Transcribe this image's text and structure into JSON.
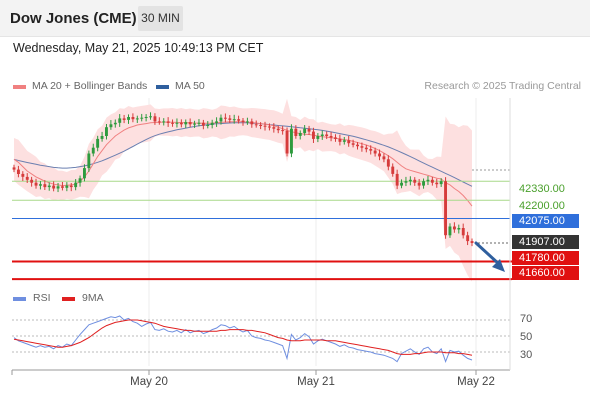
{
  "header": {
    "title": "Dow Jones (CME)",
    "timeframe": "30 MIN"
  },
  "timestamp": "Wednesday, May 21, 2025 10:49:13 PM CET",
  "legend": {
    "bollinger": "MA 20 + Bollinger Bands",
    "ma50": "MA 50",
    "rsi": "RSI",
    "rsi_ma": "9MA"
  },
  "copyright": "Research © 2025 Trading Central",
  "colors": {
    "up": "#2e9b3e",
    "down": "#d63b3b",
    "bollinger": "#f08080",
    "band_fill": "#fde0e0",
    "ma50": "#6b7fb0",
    "support_line": "#e01010",
    "support_label": "#e01010",
    "resistance_line": "#a8d98a",
    "resistance_text": "#4aa02c",
    "pivot": "#2f6fdb",
    "last_price": "#333333",
    "rsi": "#6f8fe0",
    "rsi_ma": "#e02020",
    "arrow": "#2f5f9e"
  },
  "levels": {
    "resistance": [
      "42330.00",
      "42200.00"
    ],
    "pivot": "42075.00",
    "last": "41907.00",
    "support": [
      "41780.00",
      "41660.00"
    ]
  },
  "x_labels": [
    "May 20",
    "May 21",
    "May 22"
  ],
  "rsi_ticks": [
    "70",
    "50",
    "30"
  ],
  "chart_data": [
    {
      "type": "candlestick",
      "title": "Dow Jones (CME)",
      "timeframe": "30 MIN",
      "ylim": [
        41640,
        42900
      ],
      "x_labels": [
        "May 20",
        "May 21",
        "May 22"
      ],
      "closes": [
        42410,
        42380,
        42360,
        42340,
        42320,
        42300,
        42310,
        42290,
        42300,
        42280,
        42295,
        42285,
        42300,
        42290,
        42320,
        42350,
        42420,
        42520,
        42560,
        42620,
        42640,
        42700,
        42720,
        42730,
        42760,
        42750,
        42770,
        42755,
        42760,
        42765,
        42770,
        42775,
        42740,
        42735,
        42740,
        42730,
        42725,
        42730,
        42720,
        42735,
        42720,
        42725,
        42730,
        42710,
        42715,
        42730,
        42740,
        42765,
        42760,
        42750,
        42755,
        42745,
        42735,
        42740,
        42720,
        42715,
        42710,
        42705,
        42700,
        42690,
        42680,
        42675,
        42520,
        42690,
        42640,
        42660,
        42690,
        42670,
        42620,
        42640,
        42650,
        42640,
        42630,
        42620,
        42600,
        42610,
        42590,
        42580,
        42570,
        42560,
        42550,
        42540,
        42520,
        42500,
        42480,
        42430,
        42380,
        42300,
        42320,
        42330,
        42340,
        42320,
        42300,
        42330,
        42340,
        42320,
        42310,
        42330,
        41960,
        42020,
        42000,
        42010,
        41960,
        41920,
        41907
      ],
      "ma20": [
        42480,
        42460,
        42430,
        42400,
        42380,
        42360,
        42345,
        42330,
        42320,
        42310,
        42305,
        42300,
        42302,
        42305,
        42310,
        42330,
        42360,
        42400,
        42450,
        42500,
        42540,
        42580,
        42610,
        42640,
        42660,
        42680,
        42695,
        42705,
        42715,
        42720,
        42725,
        42730,
        42732,
        42734,
        42735,
        42735,
        42734,
        42733,
        42732,
        42731,
        42730,
        42729,
        42728,
        42727,
        42727,
        42728,
        42730,
        42733,
        42735,
        42737,
        42738,
        42738,
        42737,
        42735,
        42732,
        42729,
        42725,
        42721,
        42716,
        42710,
        42700,
        42690,
        42678,
        42670,
        42662,
        42656,
        42652,
        42650,
        42645,
        42640,
        42635,
        42632,
        42628,
        42624,
        42620,
        42615,
        42610,
        42603,
        42595,
        42587,
        42578,
        42567,
        42555,
        42540,
        42523,
        42505,
        42484,
        42460,
        42435,
        42415,
        42405,
        42396,
        42387,
        42378,
        42370,
        42360,
        42351,
        42345,
        42320,
        42305,
        42280,
        42260,
        42232,
        42198,
        42160
      ],
      "ma50": [
        42480,
        42472,
        42465,
        42458,
        42452,
        42446,
        42440,
        42435,
        42430,
        42425,
        42422,
        42420,
        42420,
        42422,
        42425,
        42430,
        42435,
        42442,
        42450,
        42460,
        42470,
        42482,
        42495,
        42508,
        42522,
        42536,
        42552,
        42568,
        42584,
        42600,
        42615,
        42630,
        42642,
        42652,
        42660,
        42668,
        42675,
        42682,
        42688,
        42694,
        42700,
        42705,
        42710,
        42714,
        42718,
        42721,
        42723,
        42725,
        42727,
        42729,
        42730,
        42730,
        42730,
        42730,
        42728,
        42726,
        42724,
        42721,
        42718,
        42715,
        42712,
        42709,
        42706,
        42703,
        42700,
        42696,
        42693,
        42690,
        42686,
        42682,
        42678,
        42673,
        42668,
        42662,
        42656,
        42650,
        42644,
        42638,
        42630,
        42622,
        42614,
        42605,
        42596,
        42586,
        42576,
        42565,
        42553,
        42540,
        42527,
        42513,
        42499,
        42484,
        42469,
        42454,
        42440,
        42426,
        42412,
        42398,
        42384,
        42370,
        42355,
        42340,
        42325,
        42310,
        42295
      ],
      "levels": {
        "resistance": [
          42330.0,
          42200.0
        ],
        "pivot": 42075.0,
        "last": 41907.0,
        "support": [
          41780.0,
          41660.0
        ]
      }
    },
    {
      "type": "line",
      "title": "RSI",
      "ylim": [
        15,
        85
      ],
      "ticks": [
        70,
        50,
        30
      ],
      "series": [
        {
          "name": "RSI",
          "values": [
            48,
            44,
            42,
            40,
            38,
            36,
            38,
            36,
            37,
            34,
            38,
            36,
            40,
            38,
            45,
            52,
            58,
            64,
            66,
            68,
            70,
            72,
            74,
            73,
            75,
            70,
            72,
            68,
            66,
            62,
            65,
            67,
            58,
            57,
            59,
            56,
            55,
            57,
            54,
            58,
            54,
            56,
            57,
            53,
            55,
            58,
            60,
            64,
            63,
            60,
            62,
            58,
            55,
            57,
            50,
            48,
            47,
            45,
            44,
            42,
            40,
            38,
            22,
            52,
            45,
            48,
            53,
            49,
            40,
            44,
            46,
            44,
            42,
            40,
            37,
            39,
            36,
            35,
            33,
            32,
            31,
            30,
            28,
            27,
            26,
            24,
            22,
            18,
            28,
            31,
            34,
            30,
            27,
            34,
            36,
            30,
            28,
            34,
            18,
            32,
            30,
            31,
            26,
            22,
            20
          ]
        },
        {
          "name": "9MA",
          "values": [
            46,
            45,
            44,
            43,
            42,
            41,
            40,
            39,
            38,
            37,
            36,
            36,
            37,
            38,
            40,
            42,
            45,
            48,
            52,
            56,
            60,
            63,
            65,
            67,
            68,
            69,
            70,
            70,
            70,
            69,
            68,
            67,
            66,
            64,
            62,
            61,
            60,
            59,
            58,
            57,
            57,
            56,
            56,
            56,
            56,
            56,
            56,
            57,
            57,
            58,
            58,
            58,
            58,
            57,
            57,
            56,
            55,
            54,
            52,
            50,
            48,
            47,
            45,
            44,
            44,
            44,
            45,
            45,
            45,
            45,
            45,
            44,
            44,
            44,
            43,
            42,
            41,
            40,
            39,
            38,
            37,
            36,
            35,
            34,
            33,
            32,
            30,
            28,
            27,
            27,
            27,
            28,
            28,
            29,
            30,
            30,
            30,
            30,
            29,
            29,
            29,
            28,
            28,
            27,
            26
          ]
        }
      ]
    }
  ]
}
